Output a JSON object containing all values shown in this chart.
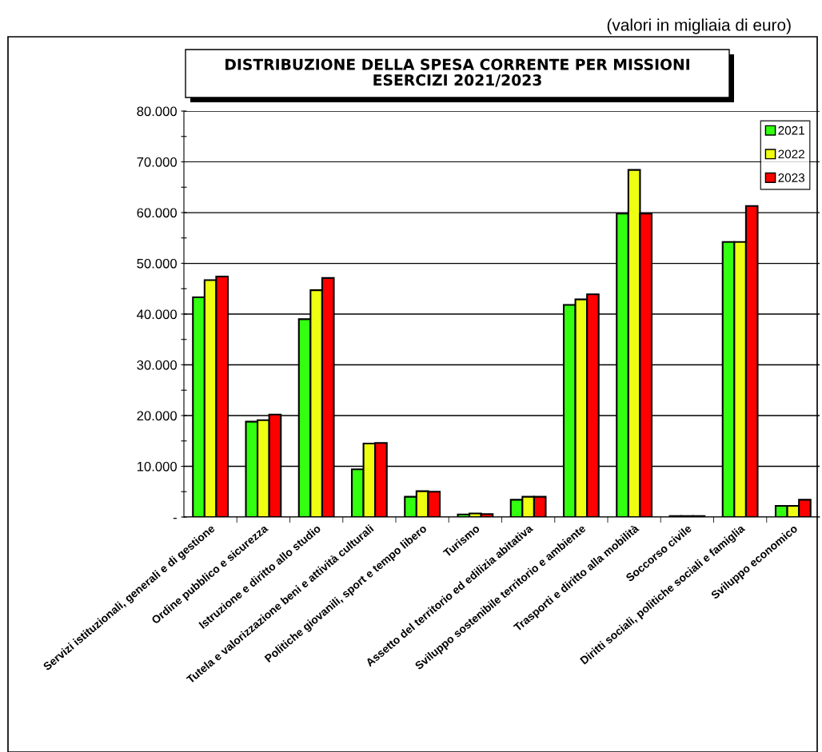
{
  "chart_data": {
    "type": "bar",
    "title": "DISTRIBUZIONE DELLA SPESA CORRENTE PER MISSIONI\nESERCIZI 2021/2023",
    "annotations": [
      "(valori in migliaia di euro)"
    ],
    "categories": [
      "Servizi istituzionali, generali e di gestione",
      "Ordine pubblico e sicurezza",
      "Istruzione e diritto allo studio",
      "Tutela e valorizzazione beni e attività culturali",
      "Politiche giovanili, sport e tempo libero",
      "Turismo",
      "Assetto del territorio ed edilizia abitativa",
      "Sviluppo sostenibile territorio e ambiente",
      "Trasporti e diritto alla mobilità",
      "Soccorso civile",
      "Diritti sociali, politiche sociali e famiglia",
      "Sviluppo economico"
    ],
    "series": [
      {
        "name": "2021",
        "color": "#33ff11",
        "values": [
          43300,
          18800,
          39000,
          9400,
          4000,
          500,
          3400,
          41800,
          59800,
          200,
          54200,
          2200
        ]
      },
      {
        "name": "2022",
        "color": "#eeff11",
        "values": [
          46700,
          19100,
          44700,
          14500,
          5100,
          700,
          4000,
          42900,
          68400,
          200,
          54200,
          2200
        ]
      },
      {
        "name": "2023",
        "color": "#ff0000",
        "values": [
          47400,
          20200,
          47100,
          14600,
          5000,
          600,
          4000,
          43900,
          59800,
          200,
          61300,
          3400
        ]
      }
    ],
    "ylim": [
      0,
      80000
    ],
    "yticks": [
      {
        "value": 0,
        "label": "-"
      },
      {
        "value": 5000,
        "label": null
      },
      {
        "value": 10000,
        "label": "10.000"
      },
      {
        "value": 15000,
        "label": null
      },
      {
        "value": 20000,
        "label": "20.000"
      },
      {
        "value": 25000,
        "label": null
      },
      {
        "value": 30000,
        "label": "30.000"
      },
      {
        "value": 35000,
        "label": null
      },
      {
        "value": 40000,
        "label": "40.000"
      },
      {
        "value": 45000,
        "label": null
      },
      {
        "value": 50000,
        "label": "50.000"
      },
      {
        "value": 55000,
        "label": null
      },
      {
        "value": 60000,
        "label": "60.000"
      },
      {
        "value": 65000,
        "label": null
      },
      {
        "value": 70000,
        "label": "70.000"
      },
      {
        "value": 75000,
        "label": null
      },
      {
        "value": 80000,
        "label": "80.000"
      }
    ],
    "grid": "y",
    "legend": "top right"
  }
}
